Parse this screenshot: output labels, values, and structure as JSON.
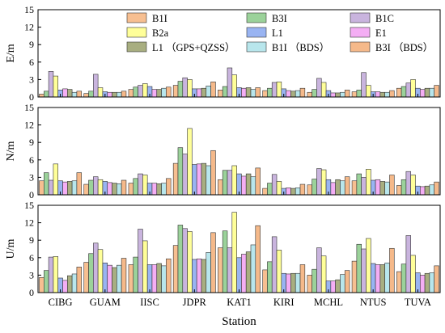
{
  "chart_data": {
    "type": "bar",
    "xlabel": "Station",
    "categories": [
      "CIBG",
      "GUAM",
      "IISC",
      "JDPR",
      "KAT1",
      "KIRI",
      "MCHL",
      "NTUS",
      "TUVA"
    ],
    "legend": {
      "placement": "top, spanning the upper panel",
      "entries": [
        "B1I",
        "B3I",
        "B1C",
        "B2a",
        "L1",
        "E1",
        "L1 （GPS+QZSS）",
        "B1I （BDS）",
        "B3I （BDS）"
      ]
    },
    "series_colors": [
      "#f7bf91",
      "#9bd29a",
      "#c9b4de",
      "#ffff99",
      "#99b4f2",
      "#f4aef4",
      "#a8ae80",
      "#b8e6ec",
      "#f5b98a"
    ],
    "panels": [
      {
        "ylabel": "E/m",
        "ylim": [
          0,
          15
        ],
        "yticks": [
          "0",
          "3",
          "6",
          "9",
          "12",
          "15"
        ],
        "series": [
          {
            "name": "B1I",
            "values": [
              0.5,
              0.6,
              1.3,
              2.0,
              1.2,
              1.1,
              0.8,
              0.9,
              1.5
            ]
          },
          {
            "name": "B3I",
            "values": [
              1.0,
              1.0,
              1.7,
              2.7,
              1.8,
              1.5,
              1.3,
              1.2,
              1.8
            ]
          },
          {
            "name": "B1C",
            "values": [
              4.4,
              3.9,
              2.0,
              3.3,
              5.0,
              2.5,
              3.2,
              4.2,
              2.4
            ]
          },
          {
            "name": "B2a",
            "values": [
              3.6,
              1.6,
              2.3,
              3.0,
              3.8,
              2.6,
              2.5,
              2.0,
              3.0
            ]
          },
          {
            "name": "L1",
            "values": [
              1.2,
              0.9,
              1.8,
              1.4,
              1.6,
              1.4,
              1.1,
              0.9,
              1.5
            ]
          },
          {
            "name": "E1",
            "values": [
              1.4,
              0.8,
              1.3,
              1.4,
              1.5,
              1.1,
              0.7,
              0.9,
              1.3
            ]
          },
          {
            "name": "L1 （GPS+QZSS）",
            "values": [
              1.3,
              0.8,
              1.3,
              1.5,
              1.6,
              1.0,
              0.7,
              0.8,
              1.5
            ]
          },
          {
            "name": "B1I （BDS）",
            "values": [
              0.8,
              0.8,
              1.5,
              1.9,
              1.3,
              1.1,
              0.8,
              0.8,
              1.5
            ]
          },
          {
            "name": "B3I （BDS）",
            "values": [
              1.0,
              1.0,
              1.7,
              2.6,
              1.6,
              1.5,
              1.2,
              1.1,
              2.0
            ]
          }
        ]
      },
      {
        "ylabel": "N/m",
        "ylim": [
          0,
          15
        ],
        "yticks": [
          "0",
          "3",
          "6",
          "9",
          "12",
          "15"
        ],
        "series": [
          {
            "name": "B1I",
            "values": [
              2.4,
              1.8,
              2.0,
              5.4,
              2.6,
              1.1,
              1.7,
              2.4,
              1.6
            ]
          },
          {
            "name": "B3I",
            "values": [
              3.8,
              2.5,
              2.8,
              8.1,
              4.2,
              2.0,
              2.7,
              3.6,
              2.6
            ]
          },
          {
            "name": "B1C",
            "values": [
              2.5,
              3.1,
              3.6,
              7.0,
              4.2,
              3.5,
              4.5,
              3.0,
              4.0
            ]
          },
          {
            "name": "B2a",
            "values": [
              5.3,
              2.6,
              3.4,
              11.4,
              5.0,
              2.3,
              4.3,
              4.4,
              3.4
            ]
          },
          {
            "name": "L1",
            "values": [
              2.4,
              2.3,
              2.0,
              5.2,
              3.6,
              1.1,
              2.6,
              2.5,
              1.5
            ]
          },
          {
            "name": "E1",
            "values": [
              2.2,
              2.1,
              2.0,
              5.3,
              3.2,
              1.2,
              2.1,
              2.6,
              1.4
            ]
          },
          {
            "name": "L1 （GPS+QZSS）",
            "values": [
              2.3,
              2.0,
              1.9,
              5.4,
              3.6,
              1.1,
              2.6,
              2.3,
              1.5
            ]
          },
          {
            "name": "B1I （BDS）",
            "values": [
              2.4,
              1.9,
              2.0,
              5.0,
              3.1,
              1.2,
              2.4,
              2.2,
              1.7
            ]
          },
          {
            "name": "B3I （BDS）",
            "values": [
              3.8,
              2.5,
              2.8,
              7.6,
              4.6,
              1.8,
              3.1,
              3.4,
              2.2
            ]
          }
        ]
      },
      {
        "ylabel": "U/m",
        "ylim": [
          0,
          15
        ],
        "yticks": [
          "0",
          "3",
          "6",
          "9",
          "12",
          "15"
        ],
        "series": [
          {
            "name": "B1I",
            "values": [
              2.6,
              5.2,
              4.8,
              8.1,
              7.7,
              3.9,
              3.0,
              5.4,
              3.6
            ]
          },
          {
            "name": "B3I",
            "values": [
              3.8,
              6.7,
              6.1,
              11.6,
              10.6,
              5.3,
              4.0,
              8.3,
              4.9
            ]
          },
          {
            "name": "B1C",
            "values": [
              6.1,
              8.5,
              10.9,
              11.0,
              7.7,
              9.6,
              7.7,
              7.5,
              9.8
            ]
          },
          {
            "name": "B2a",
            "values": [
              6.2,
              7.4,
              8.9,
              10.5,
              13.8,
              7.3,
              6.3,
              9.3,
              6.4
            ]
          },
          {
            "name": "L1",
            "values": [
              2.5,
              5.1,
              4.8,
              5.7,
              6.0,
              3.3,
              2.0,
              5.0,
              3.4
            ]
          },
          {
            "name": "E1",
            "values": [
              2.1,
              4.7,
              4.8,
              5.8,
              6.6,
              3.2,
              2.0,
              4.8,
              3.0
            ]
          },
          {
            "name": "L1 （GPS+QZSS）",
            "values": [
              2.9,
              4.3,
              5.0,
              5.7,
              7.0,
              3.3,
              2.2,
              4.8,
              3.3
            ]
          },
          {
            "name": "B1I （BDS）",
            "values": [
              3.2,
              4.7,
              4.6,
              6.9,
              8.2,
              3.3,
              3.1,
              5.1,
              3.4
            ]
          },
          {
            "name": "B3I （BDS）",
            "values": [
              4.4,
              5.9,
              5.8,
              10.3,
              11.5,
              4.8,
              3.8,
              7.6,
              4.6
            ]
          }
        ]
      }
    ]
  }
}
